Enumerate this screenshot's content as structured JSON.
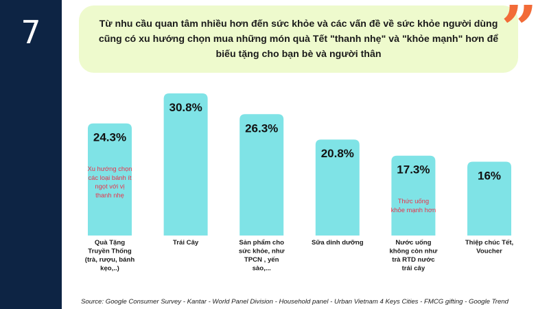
{
  "slide": {
    "number": "7"
  },
  "headline": {
    "text": "Từ nhu cầu quan tâm nhiều hơn đến sức khỏe và các vấn đề về sức khỏe người dùng cũng có xu hướng chọn mua những món quà Tết \"thanh nhẹ\" và \"khỏe mạnh\" hơn để biếu tặng cho bạn bè và người thân"
  },
  "icons": {
    "quote": "quote-icon"
  },
  "colors": {
    "bar": "#7fe3e6",
    "annotation": "#e8334a",
    "sidebar": "#0d2444",
    "quote": "#f26b38",
    "headline_bg": "#eefacd"
  },
  "chart_data": {
    "type": "bar",
    "title": "",
    "xlabel": "",
    "ylabel": "",
    "ylim": [
      0,
      32
    ],
    "grid": false,
    "categories": [
      [
        "Quà Tặng",
        "Truyền Thống",
        "(trà, rượu, bánh",
        "kẹo,..)"
      ],
      [
        "Trái Cây"
      ],
      [
        "Sản phẩm cho",
        "sức khỏe, như",
        "TPCN , yến",
        "sào,..."
      ],
      [
        "Sữa dinh dưỡng"
      ],
      [
        "Nước uống",
        "không còn như",
        "trà RTD nước",
        "trái cây"
      ],
      [
        "Thiệp chúc Tết,",
        "Voucher"
      ]
    ],
    "values": [
      24.3,
      30.8,
      26.3,
      20.8,
      17.3,
      16
    ],
    "value_labels": [
      "24.3%",
      "30.8%",
      "26.3%",
      "20.8%",
      "17.3%",
      "16%"
    ],
    "annotations": [
      {
        "bar": 0,
        "lines": [
          "Xu hướng chọn",
          "các loại bánh ít",
          "ngọt với vị",
          "thanh nhẹ"
        ]
      },
      {
        "bar": 4,
        "lines": [
          "Thức uống",
          "khỏe mạnh hơn"
        ]
      }
    ]
  },
  "source": {
    "text": "Source: Google Consumer Survey - Kantar - World Panel Division - Household panel - Urban Vietnam 4 Keys Cities - FMCG gifting - Google Trend"
  }
}
